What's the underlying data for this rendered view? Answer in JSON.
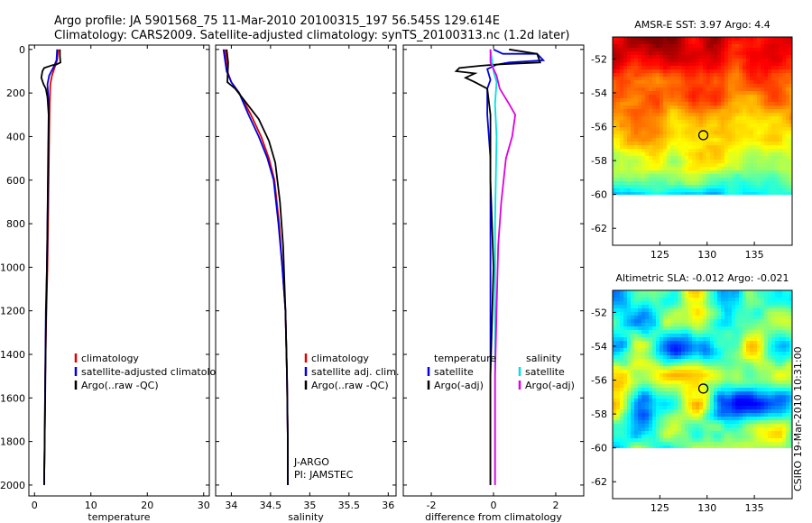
{
  "header": {
    "title_line1": "Argo profile: JA 5901568_75 11-Mar-2010 20100315_197 56.545S 129.614E",
    "title_line2": "Climatology: CARS2009. Satellite-adjusted climatology: synTS_20100313.nc (1.2d later)"
  },
  "credit": "CSIRO 19-Mar-2010 10:31:00",
  "colors": {
    "climatology": "#e00000",
    "satellite": "#0000e0",
    "argo": "#000000",
    "sat_salinity": "#00e0e0",
    "argo_salinity_adj": "#e000e0"
  },
  "chart_data": [
    {
      "type": "line",
      "id": "temperature",
      "xlabel": "temperature",
      "xlim": [
        -1,
        31
      ],
      "ylim": [
        2050,
        -20
      ],
      "xticks": [
        0,
        10,
        20,
        30
      ],
      "yticks": [
        0,
        200,
        400,
        600,
        800,
        1000,
        1200,
        1400,
        1600,
        1800,
        2000
      ],
      "legend": [
        "climatology",
        "satellite-adjusted climatology",
        "Argo(..raw -QC)"
      ],
      "series": [
        {
          "name": "climatology",
          "color": "#e00000",
          "points": [
            [
              4.2,
              0
            ],
            [
              4.0,
              50
            ],
            [
              3.6,
              80
            ],
            [
              3.1,
              120
            ],
            [
              2.8,
              160
            ],
            [
              2.7,
              250
            ],
            [
              2.6,
              400
            ],
            [
              2.5,
              600
            ],
            [
              2.4,
              800
            ],
            [
              2.3,
              1000
            ],
            [
              2.1,
              1200
            ],
            [
              1.9,
              1500
            ],
            [
              1.8,
              1800
            ],
            [
              1.7,
              2000
            ]
          ]
        },
        {
          "name": "satellite-adjusted climatology",
          "color": "#0000e0",
          "points": [
            [
              4.0,
              0
            ],
            [
              3.9,
              50
            ],
            [
              3.4,
              80
            ],
            [
              2.6,
              120
            ],
            [
              2.3,
              160
            ],
            [
              2.5,
              250
            ],
            [
              2.5,
              400
            ],
            [
              2.4,
              600
            ],
            [
              2.3,
              800
            ],
            [
              2.2,
              1000
            ],
            [
              2.0,
              1200
            ],
            [
              1.9,
              1500
            ],
            [
              1.8,
              1800
            ],
            [
              1.7,
              2000
            ]
          ]
        },
        {
          "name": "Argo(..raw -QC)",
          "color": "#000000",
          "points": [
            [
              4.5,
              0
            ],
            [
              4.5,
              30
            ],
            [
              4.6,
              60
            ],
            [
              3.8,
              70
            ],
            [
              3.2,
              72
            ],
            [
              2.5,
              78
            ],
            [
              1.7,
              85
            ],
            [
              1.4,
              100
            ],
            [
              1.2,
              130
            ],
            [
              1.6,
              160
            ],
            [
              2.0,
              180
            ],
            [
              2.3,
              220
            ],
            [
              2.5,
              300
            ],
            [
              2.4,
              500
            ],
            [
              2.3,
              800
            ],
            [
              2.2,
              1000
            ],
            [
              2.0,
              1300
            ],
            [
              1.9,
              1600
            ],
            [
              1.8,
              1800
            ],
            [
              1.7,
              2000
            ]
          ]
        }
      ]
    },
    {
      "type": "line",
      "id": "salinity",
      "xlabel": "salinity",
      "xlim": [
        33.8,
        36.1
      ],
      "ylim": [
        2050,
        -20
      ],
      "xticks": [
        34,
        34.5,
        35,
        35.5,
        36
      ],
      "yticks": [
        0,
        200,
        400,
        600,
        800,
        1000,
        1200,
        1400,
        1600,
        1800,
        2000
      ],
      "legend": [
        "climatology",
        "satellite adj. clim.",
        "Argo(..raw -QC)"
      ],
      "annotation": [
        "J-ARGO",
        "PI: JAMSTEC"
      ],
      "series": [
        {
          "name": "climatology",
          "color": "#e00000",
          "points": [
            [
              33.92,
              0
            ],
            [
              33.95,
              100
            ],
            [
              34.0,
              150
            ],
            [
              34.1,
              200
            ],
            [
              34.25,
              300
            ],
            [
              34.38,
              400
            ],
            [
              34.48,
              500
            ],
            [
              34.55,
              600
            ],
            [
              34.61,
              800
            ],
            [
              34.65,
              1000
            ],
            [
              34.69,
              1200
            ],
            [
              34.71,
              1500
            ],
            [
              34.72,
              1800
            ],
            [
              34.72,
              2000
            ]
          ]
        },
        {
          "name": "satellite adj. clim.",
          "color": "#0000e0",
          "points": [
            [
              33.9,
              0
            ],
            [
              33.94,
              100
            ],
            [
              34.0,
              150
            ],
            [
              34.1,
              200
            ],
            [
              34.22,
              300
            ],
            [
              34.35,
              400
            ],
            [
              34.46,
              500
            ],
            [
              34.54,
              600
            ],
            [
              34.6,
              800
            ],
            [
              34.65,
              1000
            ],
            [
              34.69,
              1200
            ],
            [
              34.71,
              1500
            ],
            [
              34.72,
              1800
            ],
            [
              34.72,
              2000
            ]
          ]
        },
        {
          "name": "Argo(..raw -QC)",
          "color": "#000000",
          "points": [
            [
              33.94,
              0
            ],
            [
              33.96,
              60
            ],
            [
              33.95,
              150
            ],
            [
              34.05,
              180
            ],
            [
              34.2,
              250
            ],
            [
              34.35,
              320
            ],
            [
              34.48,
              420
            ],
            [
              34.56,
              520
            ],
            [
              34.62,
              700
            ],
            [
              34.66,
              900
            ],
            [
              34.69,
              1200
            ],
            [
              34.71,
              1500
            ],
            [
              34.72,
              1800
            ],
            [
              34.72,
              2000
            ]
          ]
        }
      ]
    },
    {
      "type": "line",
      "id": "difference",
      "xlabel": "difference from climatology",
      "xlim": [
        -2.9,
        2.9
      ],
      "ylim": [
        2050,
        -20
      ],
      "xticks": [
        -2,
        0,
        2
      ],
      "yticks": [
        0,
        200,
        400,
        600,
        800,
        1000,
        1200,
        1400,
        1600,
        1800,
        2000
      ],
      "legend_left_title": "temperature",
      "legend_right_title": "salinity",
      "legend_left": [
        "satellite",
        "Argo(-adj)"
      ],
      "legend_right": [
        "satellite",
        "Argo(-adj)"
      ],
      "series": [
        {
          "name": "temperature satellite",
          "color": "#0000e0",
          "points": [
            [
              0,
              0
            ],
            [
              0.3,
              20
            ],
            [
              1.4,
              20
            ],
            [
              1.6,
              50
            ],
            [
              0.5,
              60
            ],
            [
              0.1,
              70
            ],
            [
              -0.2,
              90
            ],
            [
              -0.1,
              140
            ],
            [
              -0.2,
              180
            ],
            [
              -0.2,
              300
            ],
            [
              -0.1,
              500
            ],
            [
              -0.1,
              700
            ],
            [
              -0.1,
              1000
            ],
            [
              -0.1,
              1500
            ],
            [
              -0.1,
              2000
            ]
          ]
        },
        {
          "name": "temperature Argo(-adj)",
          "color": "#000000",
          "points": [
            [
              0.5,
              0
            ],
            [
              1.4,
              20
            ],
            [
              1.5,
              60
            ],
            [
              0.2,
              68
            ],
            [
              -0.4,
              75
            ],
            [
              -1.1,
              85
            ],
            [
              -1.2,
              100
            ],
            [
              -0.6,
              110
            ],
            [
              -0.9,
              130
            ],
            [
              -0.6,
              150
            ],
            [
              -0.2,
              180
            ],
            [
              -0.1,
              300
            ],
            [
              -0.1,
              600
            ],
            [
              0.0,
              1000
            ],
            [
              -0.1,
              1500
            ],
            [
              -0.1,
              2000
            ]
          ]
        },
        {
          "name": "salinity satellite",
          "color": "#00e0e0",
          "points": [
            [
              -0.1,
              0
            ],
            [
              0.0,
              100
            ],
            [
              0.1,
              150
            ],
            [
              0.05,
              250
            ],
            [
              0.1,
              400
            ],
            [
              0.05,
              800
            ],
            [
              0.05,
              1200
            ],
            [
              0.05,
              1600
            ],
            [
              0.05,
              2000
            ]
          ]
        },
        {
          "name": "salinity Argo(-adj)",
          "color": "#e000e0",
          "points": [
            [
              -0.1,
              0
            ],
            [
              -0.1,
              60
            ],
            [
              0.1,
              120
            ],
            [
              0.2,
              180
            ],
            [
              0.5,
              250
            ],
            [
              0.7,
              300
            ],
            [
              0.6,
              400
            ],
            [
              0.4,
              500
            ],
            [
              0.25,
              700
            ],
            [
              0.15,
              900
            ],
            [
              0.1,
              1200
            ],
            [
              0.05,
              1500
            ],
            [
              0.05,
              2000
            ]
          ]
        }
      ]
    },
    {
      "type": "heatmap",
      "id": "sst_map",
      "title": "AMSR-E SST: 3.97 Argo: 4.4",
      "xlim": [
        120,
        139
      ],
      "ylim": [
        -63,
        -50.7
      ],
      "xticks": [
        125,
        130,
        135
      ],
      "yticks": [
        -52,
        -54,
        -56,
        -58,
        -60,
        -62
      ],
      "data_ymin": -60,
      "marker": [
        129.6,
        -56.5
      ]
    },
    {
      "type": "heatmap",
      "id": "sla_map",
      "title": "Altimetric SLA: -0.012 Argo: -0.021",
      "xlim": [
        120,
        139
      ],
      "ylim": [
        -63,
        -50.7
      ],
      "xticks": [
        125,
        130,
        135
      ],
      "yticks": [
        -52,
        -54,
        -56,
        -58,
        -60,
        -62
      ],
      "data_ymin": -60,
      "marker": [
        129.6,
        -56.5
      ]
    }
  ]
}
